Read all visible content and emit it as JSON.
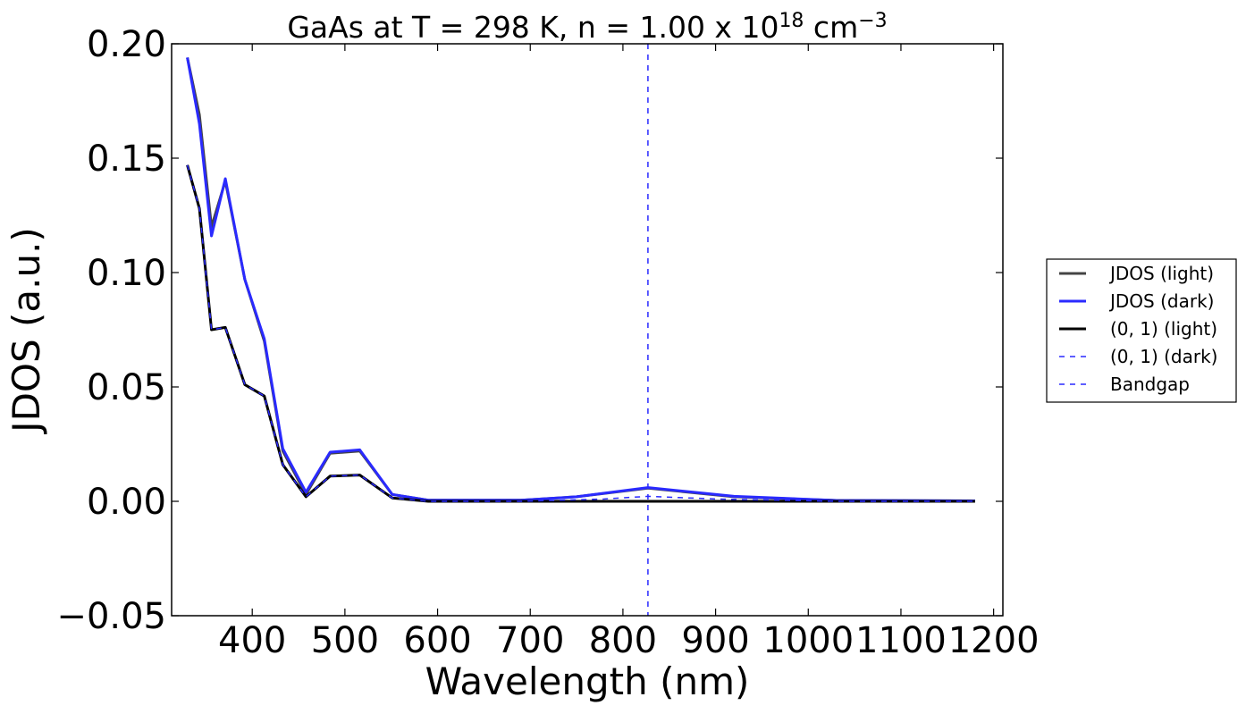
{
  "chart_data": {
    "type": "line",
    "title": {
      "text": "GaAs at T = 298 K, n = 1.00 x 10",
      "superscript_1": "18",
      "unit": " cm",
      "superscript_2": "−3"
    },
    "xlabel": "Wavelength (nm)",
    "ylabel": "JDOS (a.u.)",
    "xlim": [
      313,
      1210
    ],
    "ylim": [
      -0.05,
      0.2
    ],
    "xticks": [
      400,
      500,
      600,
      700,
      800,
      900,
      1000,
      1100,
      1200
    ],
    "xtick_labels": [
      "400",
      "500",
      "600",
      "700",
      "800",
      "900",
      "1000",
      "1100",
      "1200"
    ],
    "yticks": [
      -0.05,
      0.0,
      0.05,
      0.1,
      0.15,
      0.2
    ],
    "ytick_labels": [
      "−0.05",
      "0.00",
      "0.05",
      "0.10",
      "0.15",
      "0.20"
    ],
    "grid": false,
    "legend_position": "outside-right",
    "series": [
      {
        "name": "JDOS (light)",
        "color": "#444444",
        "style": "solid",
        "x": [
          330,
          343,
          356,
          371,
          392,
          413,
          433,
          458,
          484,
          516,
          551,
          590,
          690,
          750,
          827,
          920,
          1030,
          1180
        ],
        "y": [
          0.194,
          0.169,
          0.12,
          0.14,
          0.097,
          0.07,
          0.022,
          0.003,
          0.021,
          0.022,
          0.003,
          0.0005,
          0.0005,
          0.002,
          0.0058,
          0.002,
          0.0004,
          0.0002
        ]
      },
      {
        "name": "JDOS (dark)",
        "color": "#2a2aff",
        "style": "solid",
        "x": [
          330,
          343,
          356,
          371,
          392,
          413,
          433,
          458,
          484,
          516,
          551,
          590,
          690,
          750,
          827,
          920,
          1030,
          1180
        ],
        "y": [
          0.194,
          0.165,
          0.116,
          0.141,
          0.097,
          0.071,
          0.023,
          0.004,
          0.0215,
          0.0225,
          0.003,
          0.0005,
          0.0005,
          0.002,
          0.006,
          0.0022,
          0.0004,
          0.0002
        ]
      },
      {
        "name": "(0, 1) (light)",
        "color": "#000000",
        "style": "solid",
        "x": [
          330,
          343,
          356,
          371,
          392,
          413,
          433,
          458,
          484,
          516,
          551,
          590,
          690,
          827,
          1180
        ],
        "y": [
          0.147,
          0.128,
          0.075,
          0.076,
          0.051,
          0.046,
          0.016,
          0.002,
          0.011,
          0.0115,
          0.0015,
          0.0,
          0.0,
          0.0,
          0.0
        ]
      },
      {
        "name": "(0, 1) (dark)",
        "color": "#2a2aff",
        "style": "dashed",
        "x": [
          330,
          343,
          356,
          371,
          392,
          413,
          433,
          458,
          484,
          516,
          551,
          590,
          690,
          780,
          827,
          900,
          1030,
          1180
        ],
        "y": [
          0.147,
          0.128,
          0.075,
          0.076,
          0.051,
          0.046,
          0.016,
          0.002,
          0.011,
          0.0115,
          0.0015,
          0.0,
          0.0,
          0.001,
          0.0022,
          0.001,
          0.0,
          0.0
        ]
      }
    ],
    "bandgap": {
      "name": "Bandgap",
      "x": 827,
      "color": "#2a2aff",
      "style": "dashed"
    }
  }
}
